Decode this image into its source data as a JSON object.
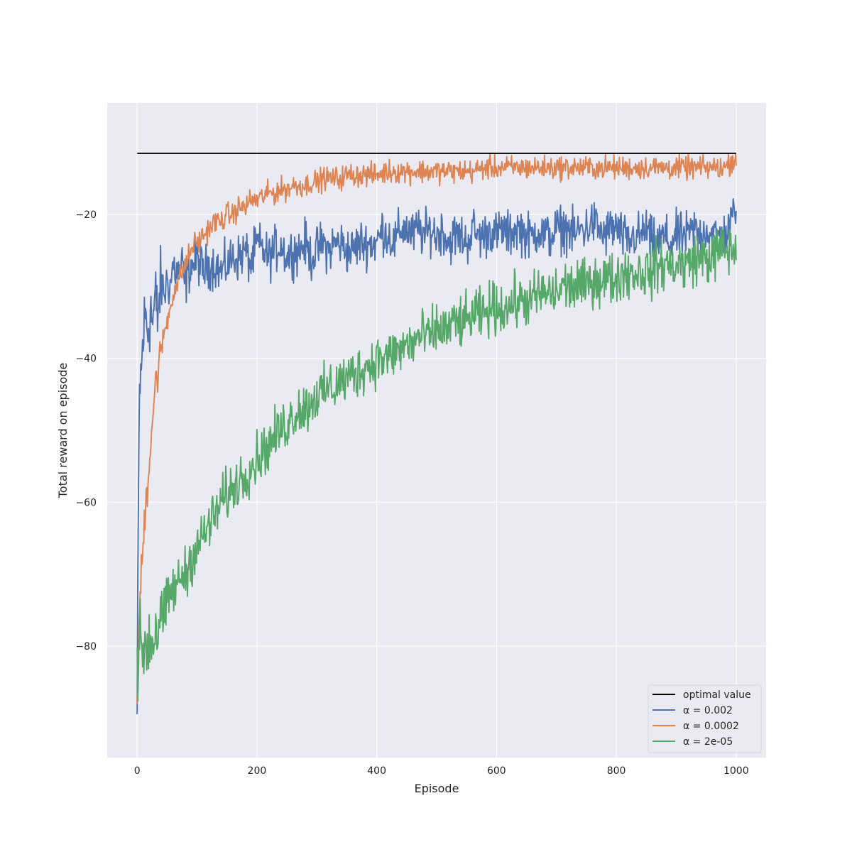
{
  "chart_data": {
    "type": "line",
    "xlabel": "Episode",
    "ylabel": "Total reward on episode",
    "xlim": [
      -50,
      1050
    ],
    "ylim": [
      -95.5,
      -4.5
    ],
    "xticks": [
      0,
      200,
      400,
      600,
      800,
      1000
    ],
    "yticks": [
      -80,
      -60,
      -40,
      -20
    ],
    "grid": true,
    "legend_position": "lower-right",
    "colors": {
      "background": "#eaeaf2",
      "grid": "#ffffff",
      "text": "#262626"
    },
    "series": [
      {
        "name": "optimal value",
        "color": "#000000",
        "points": [
          [
            0,
            -11.5
          ],
          [
            1000,
            -11.5
          ]
        ]
      },
      {
        "name": "α = 0.002",
        "color": "#4c72b0",
        "points": [
          [
            0,
            -90
          ],
          [
            2,
            -62
          ],
          [
            4,
            -44
          ],
          [
            7,
            -42
          ],
          [
            10,
            -37
          ],
          [
            14,
            -34
          ],
          [
            18,
            -36
          ],
          [
            22,
            -33
          ],
          [
            26,
            -35
          ],
          [
            30,
            -32
          ],
          [
            34,
            -34
          ],
          [
            38,
            -31
          ],
          [
            42,
            -30
          ],
          [
            46,
            -31
          ],
          [
            50,
            -29
          ],
          [
            55,
            -30
          ],
          [
            60,
            -27
          ],
          [
            65,
            -28
          ],
          [
            70,
            -28
          ],
          [
            75,
            -27
          ],
          [
            80,
            -30
          ],
          [
            85,
            -28
          ],
          [
            90,
            -27
          ],
          [
            95,
            -27
          ],
          [
            100,
            -26
          ],
          [
            110,
            -28
          ],
          [
            120,
            -27
          ],
          [
            130,
            -27
          ],
          [
            140,
            -28
          ],
          [
            150,
            -27
          ],
          [
            160,
            -26
          ],
          [
            170,
            -26
          ],
          [
            180,
            -25
          ],
          [
            190,
            -27
          ],
          [
            200,
            -24
          ],
          [
            210,
            -25
          ],
          [
            220,
            -26
          ],
          [
            230,
            -25
          ],
          [
            240,
            -24
          ],
          [
            250,
            -26
          ],
          [
            260,
            -25
          ],
          [
            270,
            -25
          ],
          [
            280,
            -24
          ],
          [
            290,
            -26
          ],
          [
            300,
            -25
          ],
          [
            310,
            -24
          ],
          [
            320,
            -25
          ],
          [
            330,
            -24
          ],
          [
            340,
            -24
          ],
          [
            350,
            -25
          ],
          [
            360,
            -25
          ],
          [
            370,
            -24
          ],
          [
            380,
            -24
          ],
          [
            390,
            -24
          ],
          [
            400,
            -24
          ],
          [
            410,
            -22
          ],
          [
            420,
            -23
          ],
          [
            430,
            -24
          ],
          [
            440,
            -22
          ],
          [
            450,
            -22
          ],
          [
            460,
            -23
          ],
          [
            470,
            -22
          ],
          [
            480,
            -23
          ],
          [
            490,
            -22
          ],
          [
            500,
            -23
          ],
          [
            510,
            -22
          ],
          [
            520,
            -24
          ],
          [
            530,
            -23
          ],
          [
            540,
            -23
          ],
          [
            550,
            -24
          ],
          [
            560,
            -22
          ],
          [
            570,
            -23
          ],
          [
            580,
            -23
          ],
          [
            590,
            -22
          ],
          [
            600,
            -23
          ],
          [
            610,
            -22
          ],
          [
            620,
            -23
          ],
          [
            630,
            -22
          ],
          [
            640,
            -22
          ],
          [
            650,
            -23
          ],
          [
            660,
            -23
          ],
          [
            670,
            -22
          ],
          [
            680,
            -23
          ],
          [
            690,
            -23
          ],
          [
            700,
            -22
          ],
          [
            710,
            -22
          ],
          [
            720,
            -22
          ],
          [
            730,
            -23
          ],
          [
            740,
            -22
          ],
          [
            750,
            -22
          ],
          [
            760,
            -21
          ],
          [
            770,
            -22
          ],
          [
            780,
            -23
          ],
          [
            790,
            -22
          ],
          [
            800,
            -22
          ],
          [
            810,
            -23
          ],
          [
            820,
            -24
          ],
          [
            830,
            -23
          ],
          [
            840,
            -23
          ],
          [
            850,
            -22
          ],
          [
            860,
            -24
          ],
          [
            870,
            -24
          ],
          [
            880,
            -23
          ],
          [
            890,
            -24
          ],
          [
            900,
            -23
          ],
          [
            910,
            -23
          ],
          [
            920,
            -23
          ],
          [
            930,
            -22
          ],
          [
            940,
            -23
          ],
          [
            950,
            -22
          ],
          [
            960,
            -23
          ],
          [
            970,
            -23
          ],
          [
            980,
            -23
          ],
          [
            990,
            -22
          ],
          [
            1000,
            -18
          ]
        ]
      },
      {
        "name": "α = 0.0002",
        "color": "#dd8452",
        "points": [
          [
            0,
            -91
          ],
          [
            2,
            -80
          ],
          [
            4,
            -75
          ],
          [
            7,
            -70
          ],
          [
            10,
            -66
          ],
          [
            14,
            -60
          ],
          [
            18,
            -57
          ],
          [
            22,
            -52
          ],
          [
            26,
            -48
          ],
          [
            30,
            -44
          ],
          [
            34,
            -42
          ],
          [
            38,
            -40
          ],
          [
            42,
            -38
          ],
          [
            46,
            -36
          ],
          [
            50,
            -35
          ],
          [
            55,
            -33
          ],
          [
            60,
            -31
          ],
          [
            65,
            -30
          ],
          [
            70,
            -29
          ],
          [
            75,
            -28
          ],
          [
            80,
            -27
          ],
          [
            85,
            -26
          ],
          [
            90,
            -25
          ],
          [
            95,
            -24
          ],
          [
            100,
            -24
          ],
          [
            110,
            -23
          ],
          [
            120,
            -22
          ],
          [
            130,
            -21
          ],
          [
            140,
            -21
          ],
          [
            150,
            -20
          ],
          [
            160,
            -20
          ],
          [
            170,
            -19
          ],
          [
            180,
            -19
          ],
          [
            190,
            -18
          ],
          [
            200,
            -18
          ],
          [
            210,
            -17.5
          ],
          [
            220,
            -17
          ],
          [
            230,
            -17
          ],
          [
            240,
            -16.5
          ],
          [
            250,
            -16.5
          ],
          [
            260,
            -16
          ],
          [
            270,
            -16
          ],
          [
            280,
            -16
          ],
          [
            290,
            -15.5
          ],
          [
            300,
            -15.5
          ],
          [
            310,
            -15
          ],
          [
            320,
            -15
          ],
          [
            330,
            -15
          ],
          [
            340,
            -15
          ],
          [
            350,
            -14.5
          ],
          [
            360,
            -14.5
          ],
          [
            370,
            -14.5
          ],
          [
            380,
            -14.5
          ],
          [
            390,
            -14.5
          ],
          [
            400,
            -14.5
          ],
          [
            420,
            -14
          ],
          [
            440,
            -14
          ],
          [
            460,
            -14
          ],
          [
            480,
            -14
          ],
          [
            500,
            -14
          ],
          [
            520,
            -14
          ],
          [
            540,
            -14
          ],
          [
            560,
            -14
          ],
          [
            580,
            -13.5
          ],
          [
            600,
            -13.5
          ],
          [
            620,
            -13.5
          ],
          [
            640,
            -13.5
          ],
          [
            660,
            -13.5
          ],
          [
            680,
            -13.5
          ],
          [
            700,
            -13.5
          ],
          [
            720,
            -13.5
          ],
          [
            740,
            -13.5
          ],
          [
            760,
            -13.5
          ],
          [
            780,
            -13.5
          ],
          [
            800,
            -13.5
          ],
          [
            820,
            -13.5
          ],
          [
            840,
            -13.5
          ],
          [
            860,
            -13.5
          ],
          [
            880,
            -13.5
          ],
          [
            900,
            -13.5
          ],
          [
            920,
            -13.5
          ],
          [
            940,
            -13.5
          ],
          [
            960,
            -13.5
          ],
          [
            980,
            -13.5
          ],
          [
            1000,
            -12
          ]
        ]
      },
      {
        "name": "α = 2e-05",
        "color": "#55a868",
        "points": [
          [
            0,
            -82
          ],
          [
            5,
            -81
          ],
          [
            10,
            -80
          ],
          [
            15,
            -80
          ],
          [
            20,
            -79
          ],
          [
            25,
            -79
          ],
          [
            30,
            -78
          ],
          [
            35,
            -77
          ],
          [
            40,
            -76
          ],
          [
            45,
            -76
          ],
          [
            50,
            -74
          ],
          [
            55,
            -73
          ],
          [
            60,
            -72
          ],
          [
            65,
            -72
          ],
          [
            70,
            -71
          ],
          [
            75,
            -70
          ],
          [
            80,
            -70
          ],
          [
            85,
            -69
          ],
          [
            90,
            -68
          ],
          [
            95,
            -67
          ],
          [
            100,
            -66
          ],
          [
            110,
            -65
          ],
          [
            120,
            -63
          ],
          [
            130,
            -62
          ],
          [
            140,
            -60
          ],
          [
            150,
            -59
          ],
          [
            160,
            -58
          ],
          [
            170,
            -57
          ],
          [
            180,
            -56
          ],
          [
            190,
            -55
          ],
          [
            200,
            -54
          ],
          [
            210,
            -53
          ],
          [
            220,
            -52
          ],
          [
            230,
            -51
          ],
          [
            240,
            -50
          ],
          [
            250,
            -49
          ],
          [
            260,
            -48
          ],
          [
            270,
            -47
          ],
          [
            280,
            -47
          ],
          [
            290,
            -46
          ],
          [
            300,
            -45
          ],
          [
            310,
            -45
          ],
          [
            320,
            -44
          ],
          [
            330,
            -44
          ],
          [
            340,
            -43
          ],
          [
            350,
            -43
          ],
          [
            360,
            -42
          ],
          [
            370,
            -42
          ],
          [
            380,
            -41
          ],
          [
            390,
            -41
          ],
          [
            400,
            -40
          ],
          [
            410,
            -40
          ],
          [
            420,
            -40
          ],
          [
            430,
            -39
          ],
          [
            440,
            -39
          ],
          [
            450,
            -38
          ],
          [
            460,
            -38
          ],
          [
            470,
            -37
          ],
          [
            480,
            -37
          ],
          [
            490,
            -37
          ],
          [
            500,
            -36
          ],
          [
            510,
            -36
          ],
          [
            520,
            -36
          ],
          [
            530,
            -35
          ],
          [
            540,
            -35
          ],
          [
            550,
            -35
          ],
          [
            560,
            -34
          ],
          [
            570,
            -34
          ],
          [
            580,
            -34
          ],
          [
            590,
            -33
          ],
          [
            600,
            -33
          ],
          [
            610,
            -33
          ],
          [
            620,
            -33
          ],
          [
            630,
            -32
          ],
          [
            640,
            -32
          ],
          [
            650,
            -32
          ],
          [
            660,
            -32
          ],
          [
            670,
            -31
          ],
          [
            680,
            -31
          ],
          [
            690,
            -31
          ],
          [
            700,
            -31
          ],
          [
            710,
            -30
          ],
          [
            720,
            -30
          ],
          [
            730,
            -30
          ],
          [
            740,
            -30
          ],
          [
            750,
            -30
          ],
          [
            760,
            -29
          ],
          [
            770,
            -29
          ],
          [
            780,
            -29
          ],
          [
            790,
            -29
          ],
          [
            800,
            -29
          ],
          [
            810,
            -28
          ],
          [
            820,
            -28
          ],
          [
            830,
            -28
          ],
          [
            840,
            -28
          ],
          [
            850,
            -28
          ],
          [
            860,
            -28
          ],
          [
            870,
            -27
          ],
          [
            880,
            -27
          ],
          [
            890,
            -27
          ],
          [
            900,
            -27
          ],
          [
            910,
            -27
          ],
          [
            920,
            -27
          ],
          [
            930,
            -26
          ],
          [
            940,
            -26
          ],
          [
            950,
            -26
          ],
          [
            960,
            -26
          ],
          [
            970,
            -25
          ],
          [
            980,
            -25
          ],
          [
            990,
            -25
          ],
          [
            1000,
            -25
          ]
        ]
      }
    ]
  }
}
